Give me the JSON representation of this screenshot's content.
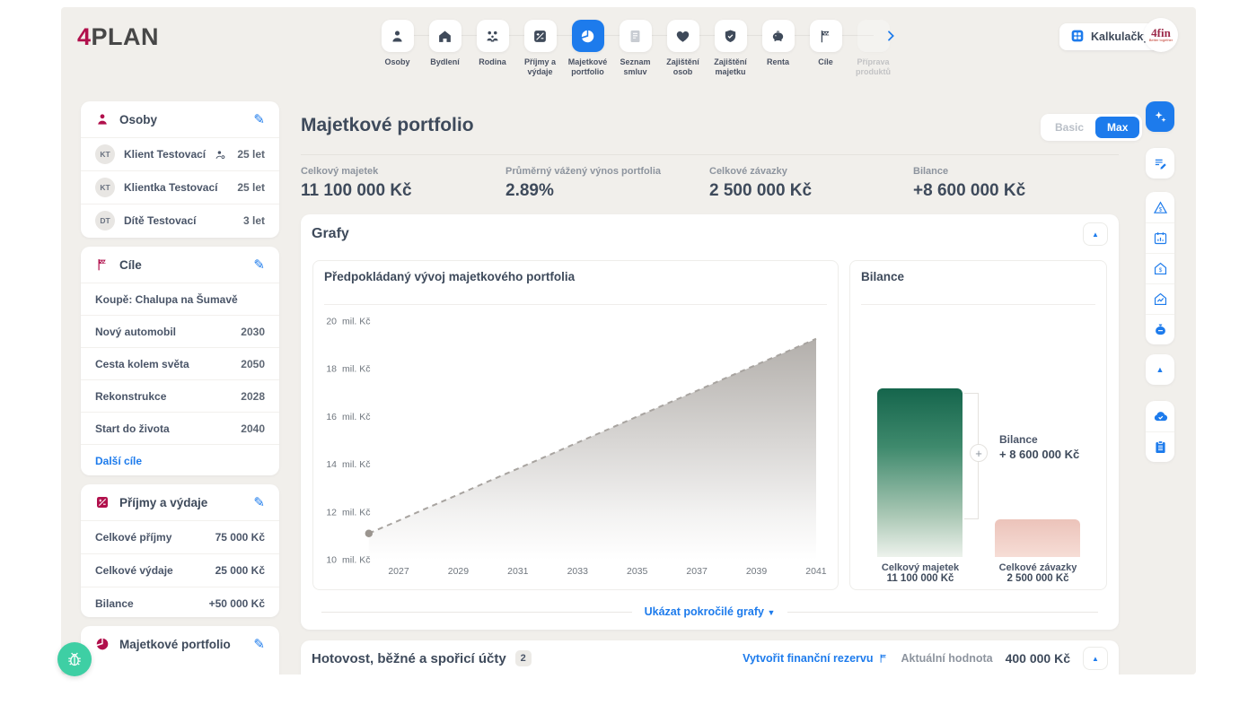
{
  "brand": {
    "logo_accent": "4",
    "logo_rest": "PLAN"
  },
  "header": {
    "nav_items": [
      {
        "label": "Osoby",
        "icon": "person",
        "state": "normal"
      },
      {
        "label": "Bydlení",
        "icon": "house",
        "state": "normal"
      },
      {
        "label": "Rodina",
        "icon": "family",
        "state": "normal"
      },
      {
        "label": "Příjmy a výdaje",
        "icon": "income-chart",
        "state": "normal"
      },
      {
        "label": "Majetkové portfolio",
        "icon": "pie-chart",
        "state": "active"
      },
      {
        "label": "Seznam smluv",
        "icon": "contract",
        "state": "disabled"
      },
      {
        "label": "Zajištění osob",
        "icon": "heart",
        "state": "normal"
      },
      {
        "label": "Zajištění majetku",
        "icon": "shield-check",
        "state": "normal"
      },
      {
        "label": "Renta",
        "icon": "piggy-bank",
        "state": "normal"
      },
      {
        "label": "Cíle",
        "icon": "finish-flag",
        "state": "normal"
      },
      {
        "label": "Příprava produktů",
        "icon": "none",
        "state": "faded"
      }
    ],
    "calculators_button": "Kalkulačky",
    "partner_logo": {
      "line1": "4fin",
      "line2": "Better together"
    }
  },
  "sidebar": {
    "persons": {
      "title": "Osoby",
      "items": [
        {
          "initials": "KT",
          "name": "Klient Testovací",
          "age": "25 let"
        },
        {
          "initials": "KT",
          "name": "Klientka Testovací",
          "age": "25 let"
        },
        {
          "initials": "DT",
          "name": "Dítě Testovací",
          "age": "3 let"
        }
      ]
    },
    "goals": {
      "title": "Cíle",
      "items": [
        {
          "label": "Koupě: Chalupa na Šumavě",
          "year": ""
        },
        {
          "label": "Nový automobil",
          "year": "2030"
        },
        {
          "label": "Cesta kolem světa",
          "year": "2050"
        },
        {
          "label": "Rekonstrukce",
          "year": "2028"
        },
        {
          "label": "Start do života",
          "year": "2040"
        }
      ],
      "more_link": "Další cíle"
    },
    "income_expenses": {
      "title": "Příjmy a výdaje",
      "rows": [
        {
          "label": "Celkové příjmy",
          "value": "75 000 Kč"
        },
        {
          "label": "Celkové výdaje",
          "value": "25 000 Kč"
        },
        {
          "label": "Bilance",
          "value": "+50 000 Kč"
        }
      ]
    },
    "portfolio": {
      "title": "Majetkové portfolio"
    }
  },
  "main": {
    "title": "Majetkové portfolio",
    "view_toggle": {
      "basic": "Basic",
      "max": "Max",
      "selected": "Max"
    },
    "stats": [
      {
        "label": "Celkový majetek",
        "value": "11 100 000 Kč"
      },
      {
        "label": "Průměrný vážený výnos portfolia",
        "value": "2.89%"
      },
      {
        "label": "Celkové závazky",
        "value": "2 500 000 Kč"
      },
      {
        "label": "Bilance",
        "value": "+8 600 000 Kč"
      }
    ],
    "charts_section_title": "Grafy",
    "advanced_charts_link": "Ukázat pokročilé grafy",
    "cash_section": {
      "title": "Hotovost, běžné a spořicí účty",
      "count": "2",
      "reserve_link": "Vytvořit finanční rezervu",
      "value_label": "Aktuální hodnota",
      "value": "400 000 Kč"
    }
  },
  "chart_data": [
    {
      "type": "area",
      "title": "Předpokládaný vývoj majetkového portfolia",
      "unit": "mil. Kč",
      "x": [
        2026,
        2027,
        2028,
        2029,
        2030,
        2031,
        2032,
        2033,
        2034,
        2035,
        2036,
        2037,
        2038,
        2039,
        2040,
        2041
      ],
      "values": [
        11.1,
        11.64,
        12.19,
        12.73,
        13.28,
        13.82,
        14.36,
        14.91,
        15.45,
        16.0,
        16.54,
        17.08,
        17.63,
        18.17,
        18.71,
        19.26
      ],
      "ylim": [
        10,
        20
      ],
      "yticks": [
        10,
        12,
        14,
        16,
        18,
        20
      ],
      "xticks": [
        2027,
        2029,
        2031,
        2033,
        2035,
        2037,
        2039,
        2041
      ],
      "line_style": "dashed",
      "line_color": "#a8a4a0",
      "grid": false,
      "legend": "none"
    },
    {
      "type": "bar",
      "title": "Bilance",
      "categories": [
        "Celkový majetek",
        "Celkové závazky"
      ],
      "values": [
        11100000,
        2500000
      ],
      "value_labels": [
        "11 100 000 Kč",
        "2 500 000 Kč"
      ],
      "bar_colors": [
        "#15654c",
        "#ecc3ba"
      ],
      "annotation": {
        "label": "Bilance",
        "value": "+ 8 600 000 Kč"
      }
    }
  ],
  "right_rail": {
    "buttons": [
      {
        "icon": "sparkles",
        "active": true
      },
      {
        "icon": "note-pencil"
      },
      {
        "icon": "triangle-dollar"
      },
      {
        "icon": "calendar-chart"
      },
      {
        "icon": "house-dollar"
      },
      {
        "icon": "house-trend"
      },
      {
        "icon": "money-bag"
      },
      {
        "icon": "chevron-up"
      },
      {
        "icon": "cloud-check"
      },
      {
        "icon": "clipboard"
      }
    ]
  },
  "colors": {
    "accent_blue": "#1d7bec",
    "brand_crimson": "#b1104c",
    "teal": "#3ecfa4",
    "bar_green": "#15654c",
    "bar_pink": "#ecc3ba"
  }
}
